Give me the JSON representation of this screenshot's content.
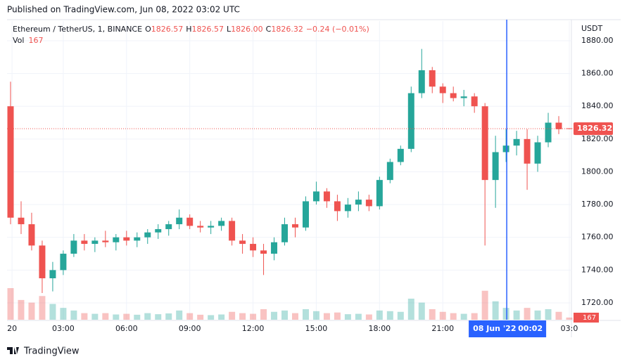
{
  "chart_data": {
    "type": "candlestick",
    "published": "Published on TradingView.com, Jun 08, 2022 03:02 UTC",
    "symbol": "Ethereum / TetherUS, 1, BINANCE",
    "legend_labels": [
      "O",
      "H",
      "L",
      "C"
    ],
    "legend_values": [
      1826.57,
      1826.57,
      1826.0,
      1826.32
    ],
    "legend_value_labels": [
      "1826.57",
      "1826.57",
      "1826.00",
      "1826.32"
    ],
    "change": "−0.24 (−0.01%)",
    "volume_label": "Vol",
    "currency": "USDT",
    "up_color": "#26a69a",
    "down_color": "#ef5350",
    "xlim": [
      0.333,
      27.1
    ],
    "ylim": [
      1709.7,
      1892
    ],
    "yticks": [
      {
        "value": 1720,
        "label": "1720.00"
      },
      {
        "value": 1740,
        "label": "1740.00"
      },
      {
        "value": 1760,
        "label": "1760.00"
      },
      {
        "value": 1780,
        "label": "1780.00"
      },
      {
        "value": 1800,
        "label": "1800.00"
      },
      {
        "value": 1820,
        "label": "1820.00"
      },
      {
        "value": 1840,
        "label": "1840.00"
      },
      {
        "value": 1860,
        "label": "1860.00"
      },
      {
        "value": 1880,
        "label": "1880.00"
      }
    ],
    "xticks": [
      {
        "value": 0.57,
        "label": "20"
      },
      {
        "value": 3,
        "label": "03:00"
      },
      {
        "value": 6,
        "label": "06:00"
      },
      {
        "value": 9,
        "label": "09:00"
      },
      {
        "value": 12,
        "label": "12:00"
      },
      {
        "value": 15,
        "label": "15:00"
      },
      {
        "value": 18,
        "label": "18:00"
      },
      {
        "value": 21,
        "label": "21:00"
      },
      {
        "value": 27,
        "label": "03:0"
      }
    ],
    "crosshair_x": 24.033,
    "crosshair_label": [
      "08 Jun '22",
      "00:02"
    ],
    "x": [
      0.5,
      1,
      1.5,
      2,
      2.5,
      3,
      3.5,
      4,
      4.5,
      5,
      5.5,
      6,
      6.5,
      7,
      7.5,
      8,
      8.5,
      9,
      9.5,
      10,
      10.5,
      11,
      11.5,
      12,
      12.5,
      13,
      13.5,
      14,
      14.5,
      15,
      15.5,
      16,
      16.5,
      17,
      17.5,
      18,
      18.5,
      19,
      19.5,
      20,
      20.5,
      21,
      21.5,
      22,
      22.5,
      23,
      23.5,
      24,
      24.5,
      25,
      25.5,
      26,
      26.5,
      27
    ],
    "open": [
      1840,
      1772,
      1768,
      1755,
      1735,
      1740,
      1750,
      1758,
      1756,
      1758,
      1757,
      1760,
      1758,
      1760,
      1763,
      1765,
      1768,
      1772,
      1767,
      1766,
      1767,
      1770,
      1758,
      1756,
      1752,
      1750,
      1757,
      1768,
      1766,
      1782,
      1788,
      1782,
      1776,
      1780,
      1783,
      1779,
      1795,
      1806,
      1814,
      1848,
      1862,
      1852,
      1848,
      1845,
      1846,
      1840,
      1795,
      1812,
      1816,
      1820,
      1805,
      1818,
      1830,
      1826.57
    ],
    "high": [
      1855,
      1782,
      1775,
      1758,
      1745,
      1752,
      1762,
      1762,
      1760,
      1764,
      1762,
      1764,
      1763,
      1765,
      1768,
      1770,
      1777,
      1774,
      1770,
      1770,
      1772,
      1772,
      1762,
      1760,
      1756,
      1760,
      1772,
      1772,
      1785,
      1794,
      1790,
      1786,
      1784,
      1788,
      1786,
      1797,
      1808,
      1816,
      1852,
      1875,
      1864,
      1854,
      1852,
      1850,
      1848,
      1842,
      1822,
      1826,
      1825,
      1826,
      1822,
      1836,
      1834,
      1826.57
    ],
    "low": [
      1768,
      1762,
      1752,
      1726,
      1727,
      1737,
      1748,
      1752,
      1751,
      1754,
      1752,
      1755,
      1754,
      1756,
      1759,
      1761,
      1765,
      1765,
      1763,
      1762,
      1764,
      1755,
      1750,
      1748,
      1737,
      1746,
      1755,
      1760,
      1764,
      1780,
      1778,
      1770,
      1772,
      1776,
      1776,
      1777,
      1793,
      1804,
      1812,
      1845,
      1848,
      1842,
      1843,
      1840,
      1836,
      1755,
      1778,
      1806,
      1810,
      1789,
      1800,
      1815,
      1823,
      1826
    ],
    "close": [
      1772,
      1768,
      1755,
      1735,
      1740,
      1750,
      1758,
      1756,
      1758,
      1757,
      1760,
      1758,
      1760,
      1763,
      1765,
      1768,
      1772,
      1767,
      1766,
      1767,
      1770,
      1758,
      1756,
      1752,
      1750,
      1757,
      1768,
      1766,
      1782,
      1788,
      1782,
      1776,
      1780,
      1783,
      1779,
      1795,
      1806,
      1814,
      1848,
      1862,
      1852,
      1848,
      1845,
      1846,
      1840,
      1795,
      1812,
      1816,
      1820,
      1805,
      1818,
      1830,
      1826,
      1826.32
    ],
    "volume": [
      2400,
      1500,
      1300,
      1800,
      1200,
      900,
      700,
      500,
      450,
      500,
      400,
      450,
      380,
      500,
      420,
      480,
      700,
      500,
      380,
      350,
      400,
      600,
      500,
      450,
      800,
      600,
      700,
      500,
      800,
      650,
      500,
      550,
      420,
      450,
      400,
      700,
      650,
      600,
      1600,
      1300,
      800,
      600,
      500,
      450,
      500,
      2200,
      1400,
      900,
      700,
      900,
      700,
      800,
      600,
      167
    ]
  }
}
